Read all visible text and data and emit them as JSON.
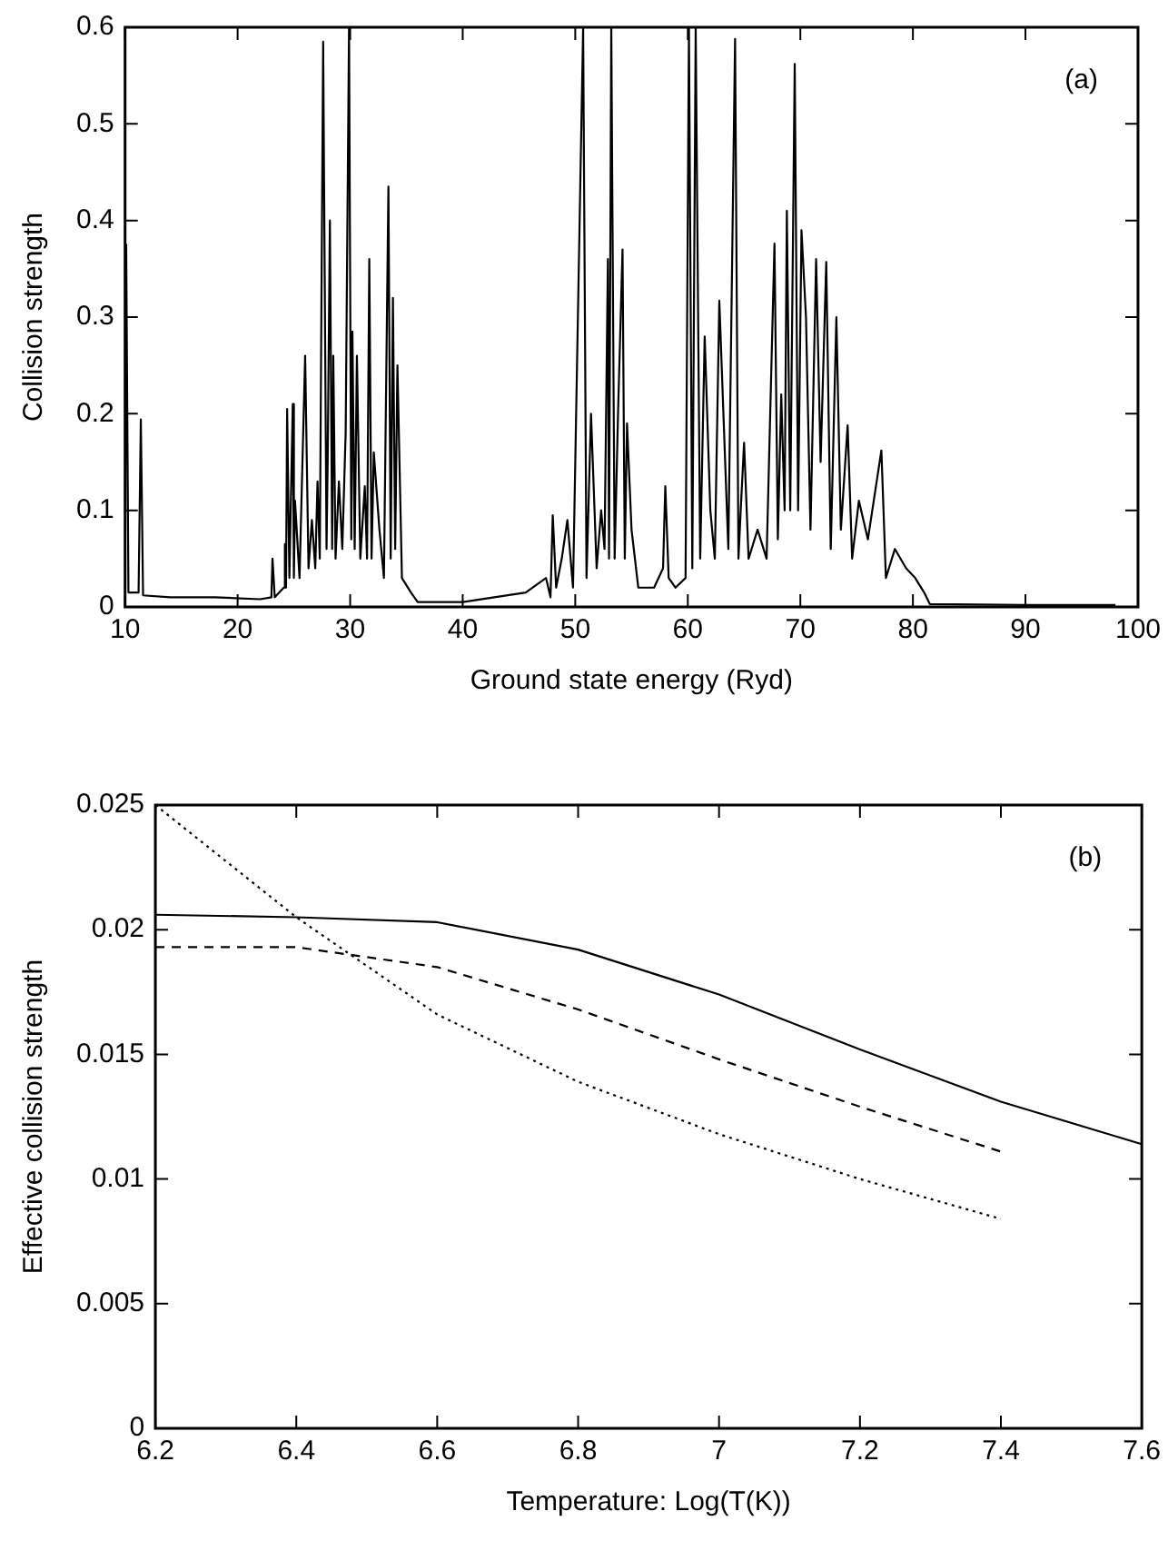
{
  "chart_data": [
    {
      "type": "line",
      "xlabel": "Ground state energy (Ryd)",
      "ylabel": "Collision strength",
      "annotations": [
        "(a)"
      ],
      "xlim": [
        10,
        100
      ],
      "xticks": [
        10,
        20,
        30,
        40,
        50,
        60,
        70,
        80,
        90,
        100
      ],
      "ylim": [
        0,
        0.6
      ],
      "yticks": [
        0,
        0.1,
        0.2,
        0.3,
        0.4,
        0.5,
        0.6
      ],
      "grid": false,
      "legend": false,
      "marker": "none",
      "series": [
        {
          "color": "#000000",
          "line_style": "solid",
          "x": [
            10,
            10.1,
            10.3,
            11.2,
            11.4,
            11.6,
            14,
            18,
            22,
            23.0,
            23.1,
            23.3,
            24.1,
            24.2,
            24.3,
            24.4,
            24.6,
            24.9,
            25.0,
            25.1,
            25.5,
            26.0,
            26.3,
            26.6,
            26.9,
            27.1,
            27.3,
            27.6,
            27.9,
            28.0,
            28.2,
            28.4,
            28.5,
            28.7,
            29.0,
            29.3,
            29.6,
            29.9,
            30.1,
            30.2,
            30.4,
            30.6,
            30.9,
            31.3,
            31.5,
            31.7,
            31.9,
            32.1,
            32.6,
            33.0,
            33.4,
            33.6,
            33.8,
            34.0,
            34.2,
            34.6,
            35.4,
            36,
            40,
            45.6,
            47.4,
            47.8,
            48.0,
            48.3,
            48.8,
            49.3,
            49.8,
            50.7,
            51.0,
            51.4,
            51.9,
            52.3,
            52.6,
            52.9,
            53.0,
            53.2,
            53.5,
            53.8,
            54.2,
            54.4,
            54.6,
            55.0,
            55.6,
            57.0,
            57.8,
            58.0,
            58.3,
            58.9,
            59.8,
            60.1,
            60.4,
            60.7,
            61.1,
            61.5,
            62.0,
            62.4,
            62.8,
            63.6,
            64.2,
            64.5,
            64.7,
            65.0,
            65.4,
            66.2,
            67.0,
            67.7,
            68.0,
            68.3,
            68.6,
            68.8,
            69.1,
            69.5,
            69.8,
            70.1,
            70.5,
            70.9,
            71.4,
            71.8,
            72.3,
            72.7,
            73.2,
            73.6,
            74.2,
            74.6,
            75.2,
            76.0,
            77.2,
            77.6,
            78.4,
            79.4,
            80.2,
            81.0,
            81.5,
            90,
            98
          ],
          "values": [
            0.01,
            0.375,
            0.015,
            0.015,
            0.194,
            0.012,
            0.01,
            0.01,
            0.008,
            0.01,
            0.05,
            0.01,
            0.02,
            0.065,
            0.02,
            0.205,
            0.03,
            0.21,
            0.03,
            0.11,
            0.03,
            0.26,
            0.04,
            0.09,
            0.04,
            0.13,
            0.05,
            0.585,
            0.06,
            0.15,
            0.4,
            0.06,
            0.26,
            0.05,
            0.13,
            0.06,
            0.18,
            0.6,
            0.07,
            0.285,
            0.06,
            0.26,
            0.05,
            0.125,
            0.05,
            0.36,
            0.05,
            0.16,
            0.08,
            0.03,
            0.435,
            0.05,
            0.32,
            0.06,
            0.25,
            0.03,
            0.015,
            0.005,
            0.005,
            0.015,
            0.03,
            0.01,
            0.095,
            0.02,
            0.05,
            0.09,
            0.02,
            0.6,
            0.03,
            0.2,
            0.04,
            0.1,
            0.06,
            0.36,
            0.05,
            0.6,
            0.05,
            0.2,
            0.37,
            0.05,
            0.19,
            0.08,
            0.02,
            0.02,
            0.04,
            0.125,
            0.03,
            0.02,
            0.03,
            0.6,
            0.04,
            0.6,
            0.05,
            0.28,
            0.1,
            0.05,
            0.317,
            0.06,
            0.588,
            0.05,
            0.1,
            0.17,
            0.05,
            0.08,
            0.05,
            0.376,
            0.07,
            0.22,
            0.1,
            0.41,
            0.1,
            0.562,
            0.1,
            0.39,
            0.3,
            0.08,
            0.36,
            0.15,
            0.357,
            0.06,
            0.3,
            0.08,
            0.188,
            0.05,
            0.11,
            0.07,
            0.162,
            0.03,
            0.06,
            0.04,
            0.03,
            0.015,
            0.003,
            0.002,
            0.002
          ]
        }
      ]
    },
    {
      "type": "line",
      "xlabel": "Temperature: Log(T(K))",
      "ylabel": "Effective collision strength",
      "annotations": [
        "(b)"
      ],
      "x": [
        6.2,
        6.4,
        6.6,
        6.8,
        7.0,
        7.2,
        7.4,
        7.6
      ],
      "xlim": [
        6.2,
        7.6
      ],
      "xticks": [
        6.2,
        6.4,
        6.6,
        6.8,
        7,
        7.2,
        7.4,
        7.6
      ],
      "ylim": [
        0,
        0.025
      ],
      "yticks": [
        0,
        0.005,
        0.01,
        0.015,
        0.02,
        0.025
      ],
      "grid": false,
      "legend": false,
      "marker": "none",
      "series": [
        {
          "color": "#000000",
          "line_style": "solid",
          "values": [
            0.0206,
            0.0205,
            0.0203,
            0.0192,
            0.0174,
            0.0152,
            0.0131,
            0.0114
          ]
        },
        {
          "color": "#000000",
          "line_style": "dashed",
          "values": [
            0.0193,
            0.0193,
            0.0185,
            0.0168,
            0.0148,
            0.0129,
            0.0111,
            null
          ]
        },
        {
          "color": "#000000",
          "line_style": "dotted",
          "values": [
            0.025,
            0.0205,
            0.0166,
            0.0139,
            0.0118,
            0.01,
            0.0084,
            null
          ]
        }
      ]
    }
  ]
}
